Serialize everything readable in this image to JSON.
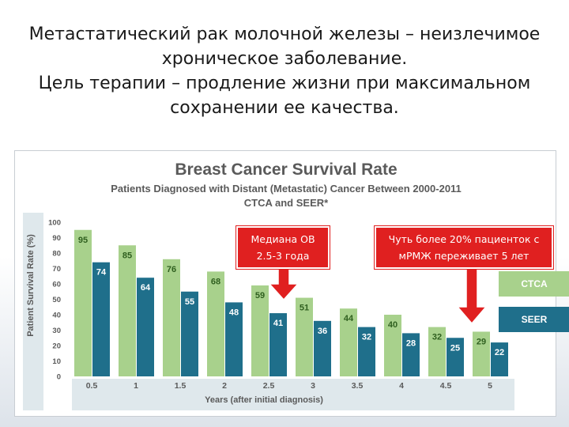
{
  "slide": {
    "line1_strong": "Метастатический рак молочной железы",
    "line1_rest": " – неизлечимое",
    "line2": "хроническое заболевание.",
    "line3_strong": "Цель терапии",
    "line3_rest": " – продление жизни при максимальном",
    "line4": "сохранении ее качества."
  },
  "callouts": {
    "median": "Медиана ОВ 2.5-3 года",
    "five_year": "Чуть более 20% пациенток с мРМЖ переживает 5 лет"
  },
  "colors": {
    "ctca": "#a8d18c",
    "seer": "#1f6f8b",
    "axis_panel": "#dfe8ec",
    "title": "#5a5a5a",
    "callout": "#e02020"
  },
  "chart_data": {
    "type": "bar",
    "title": "Breast Cancer Survival Rate",
    "subtitle_line1": "Patients Diagnosed with Distant (Metastatic) Cancer Between 2000-2011",
    "subtitle_line2": "CTCA and SEER*",
    "xlabel": "Years  (after initial diagnosis)",
    "ylabel": "Patient Survival Rate (%)",
    "ylim": [
      0,
      100
    ],
    "yticks": [
      0,
      10,
      20,
      30,
      40,
      50,
      60,
      70,
      80,
      90,
      100
    ],
    "categories": [
      "0.5",
      "1",
      "1.5",
      "2",
      "2.5",
      "3",
      "3.5",
      "4",
      "4.5",
      "5"
    ],
    "series": [
      {
        "name": "CTCA",
        "values": [
          95,
          85,
          76,
          68,
          59,
          51,
          44,
          40,
          32,
          29
        ]
      },
      {
        "name": "SEER",
        "values": [
          74,
          64,
          55,
          48,
          41,
          36,
          32,
          28,
          25,
          22
        ]
      }
    ],
    "legend": [
      "CTCA",
      "SEER"
    ]
  }
}
